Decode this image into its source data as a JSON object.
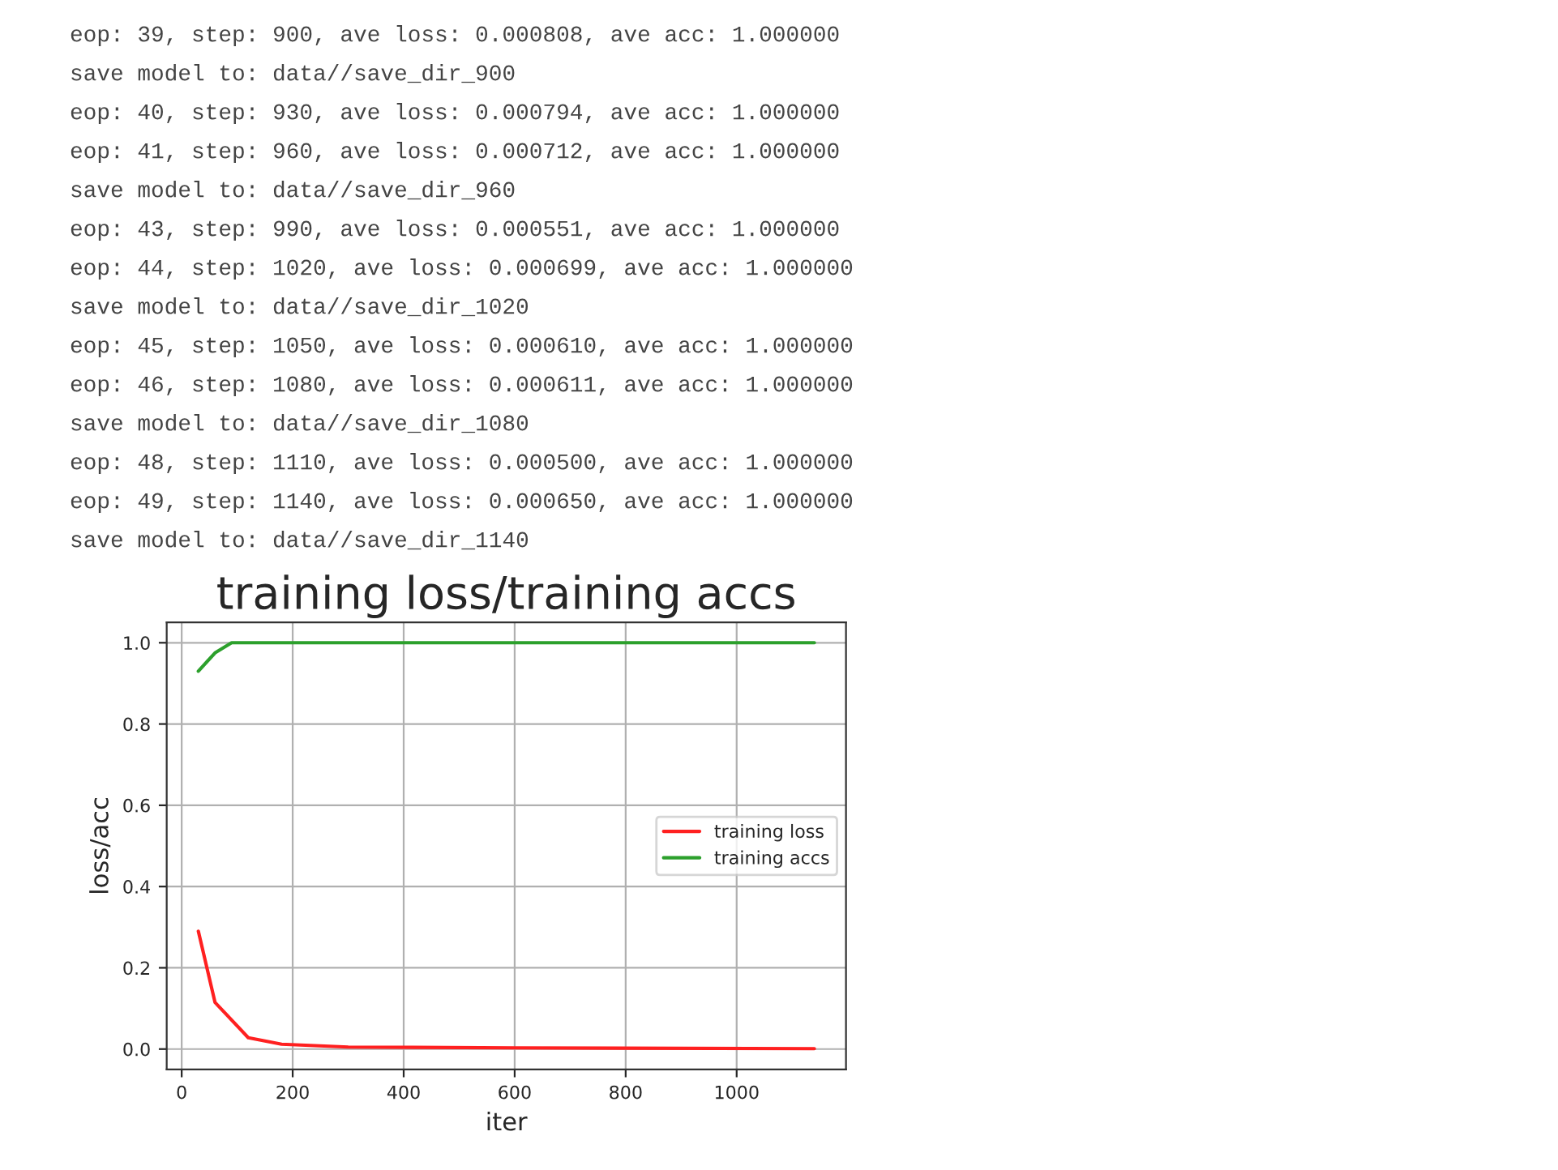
{
  "chart_data": {
    "type": "line",
    "title": "training loss/training accs",
    "xlabel": "iter",
    "ylabel": "loss/acc",
    "annotations": [
      "eop: 39, step: 900, ave loss: 0.000808, ave acc: 1.000000",
      "save model to: data//save_dir_900",
      "eop: 40, step: 930, ave loss: 0.000794, ave acc: 1.000000",
      "eop: 41, step: 960, ave loss: 0.000712, ave acc: 1.000000",
      "save model to: data//save_dir_960",
      "eop: 43, step: 990, ave loss: 0.000551, ave acc: 1.000000",
      "eop: 44, step: 1020, ave loss: 0.000699, ave acc: 1.000000",
      "save model to: data//save_dir_1020",
      "eop: 45, step: 1050, ave loss: 0.000610, ave acc: 1.000000",
      "eop: 46, step: 1080, ave loss: 0.000611, ave acc: 1.000000",
      "save model to: data//save_dir_1080",
      "eop: 48, step: 1110, ave loss: 0.000500, ave acc: 1.000000",
      "eop: 49, step: 1140, ave loss: 0.000650, ave acc: 1.000000",
      "save model to: data//save_dir_1140"
    ],
    "series": [
      {
        "name": "training loss",
        "color": "#ff2020",
        "x": [
          30,
          60,
          120,
          180,
          300,
          600,
          1140
        ],
        "values": [
          0.29,
          0.115,
          0.028,
          0.012,
          0.005,
          0.003,
          0.001
        ]
      },
      {
        "name": "training accs",
        "color": "#2ca02c",
        "x": [
          30,
          60,
          90,
          1140
        ],
        "values": [
          0.93,
          0.975,
          1.0,
          1.0
        ]
      }
    ],
    "xlim": [
      -27,
      1197
    ],
    "ylim": [
      -0.05,
      1.05
    ],
    "xticks": [
      0,
      200,
      400,
      600,
      800,
      1000
    ],
    "yticks": [
      {
        "value": 0,
        "label": "0.0"
      },
      {
        "value": 0.2,
        "label": "0.2"
      },
      {
        "value": 0.4,
        "label": "0.4"
      },
      {
        "value": 0.6,
        "label": "0.6"
      },
      {
        "value": 0.8,
        "label": "0.8"
      },
      {
        "value": 1.0,
        "label": "1.0"
      }
    ],
    "grid": true,
    "legend": "center right"
  }
}
